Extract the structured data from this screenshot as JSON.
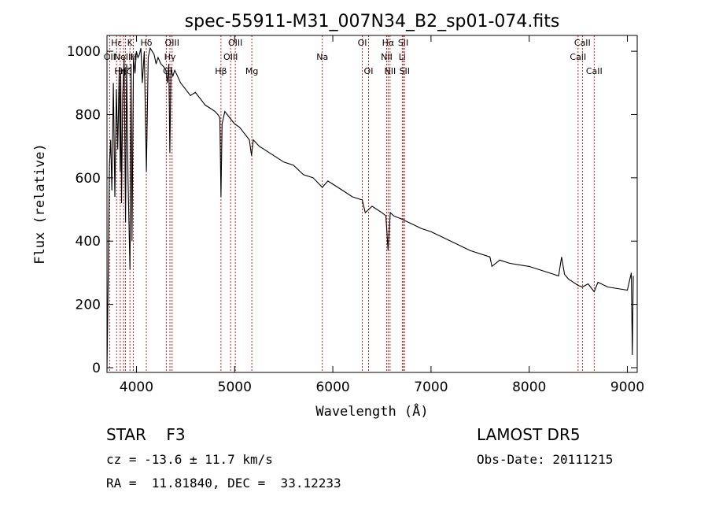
{
  "chart_data": {
    "type": "line",
    "title": "spec-55911-M31_007N34_B2_sp01-074.fits",
    "xlabel": "Wavelength (Å)",
    "ylabel": "Flux (relative)",
    "xlim": [
      3700,
      9100
    ],
    "ylim": [
      -15,
      1050
    ],
    "x_ticks": [
      4000,
      5000,
      6000,
      7000,
      8000,
      9000
    ],
    "y_ticks": [
      0,
      200,
      400,
      600,
      800,
      1000
    ],
    "grid": false,
    "series": [
      {
        "x": [
          3700,
          3712,
          3725,
          3738,
          3750,
          3765,
          3780,
          3795,
          3810,
          3825,
          3835,
          3840,
          3848,
          3860,
          3875,
          3889,
          3900,
          3915,
          3934,
          3945,
          3955,
          3970,
          3985,
          4000,
          4015,
          4030,
          4045,
          4060,
          4080,
          4101,
          4120,
          4140,
          4160,
          4180,
          4200,
          4220,
          4250,
          4280,
          4300,
          4315,
          4330,
          4340,
          4352,
          4370,
          4390,
          4420,
          4450,
          4500,
          4550,
          4600,
          4650,
          4700,
          4750,
          4800,
          4830,
          4850,
          4861,
          4872,
          4900,
          4950,
          5000,
          5050,
          5100,
          5150,
          5172,
          5190,
          5250,
          5300,
          5400,
          5500,
          5600,
          5700,
          5800,
          5893,
          5950,
          6000,
          6100,
          6200,
          6300,
          6330,
          6400,
          6500,
          6540,
          6563,
          6585,
          6620,
          6700,
          6800,
          6900,
          7000,
          7200,
          7400,
          7600,
          7620,
          7700,
          7800,
          8000,
          8200,
          8300,
          8330,
          8360,
          8400,
          8498,
          8542,
          8600,
          8662,
          8700,
          8800,
          8900,
          9000,
          9040,
          9050,
          9060
        ],
        "values": [
          -10,
          280,
          640,
          720,
          560,
          900,
          540,
          880,
          690,
          950,
          620,
          930,
          520,
          860,
          980,
          460,
          960,
          590,
          310,
          960,
          400,
          980,
          930,
          1000,
          980,
          990,
          1010,
          900,
          1000,
          620,
          980,
          1010,
          1000,
          990,
          960,
          980,
          960,
          950,
          940,
          900,
          960,
          680,
          950,
          920,
          940,
          920,
          900,
          880,
          860,
          870,
          850,
          830,
          820,
          810,
          800,
          790,
          540,
          770,
          810,
          790,
          770,
          760,
          740,
          720,
          670,
          720,
          700,
          690,
          670,
          650,
          640,
          610,
          600,
          570,
          590,
          580,
          560,
          540,
          530,
          490,
          510,
          490,
          480,
          370,
          490,
          480,
          470,
          455,
          440,
          430,
          400,
          370,
          350,
          320,
          340,
          330,
          320,
          300,
          290,
          350,
          295,
          280,
          260,
          255,
          265,
          240,
          270,
          255,
          250,
          245,
          300,
          40,
          290
        ]
      }
    ],
    "lines": [
      {
        "x": 3727,
        "label": "OII",
        "row": 1,
        "color": "#cc0000"
      },
      {
        "x": 3798,
        "label": "Hε",
        "row": 0,
        "color": "#cc0000"
      },
      {
        "x": 3835,
        "label": "Hη",
        "row": 2,
        "color": "#cc0000"
      },
      {
        "x": 3869,
        "label": "NeIII",
        "row": 1,
        "color": "#cc0000"
      },
      {
        "x": 3889,
        "label": "Hζ",
        "row": 2,
        "color": "#cc0000"
      },
      {
        "x": 3934,
        "label": "K",
        "row": 0,
        "color": "#cc0000"
      },
      {
        "x": 3969,
        "label": "H",
        "row": 1,
        "color": "#cc0000"
      },
      {
        "x": 4101,
        "label": "Hδ",
        "row": 0,
        "color": "#cc0000"
      },
      {
        "x": 4304,
        "label": "G",
        "row": 2,
        "color": "#cc0000"
      },
      {
        "x": 4341,
        "label": "Hγ",
        "row": 1,
        "color": "#cc0000"
      },
      {
        "x": 4363,
        "label": "OIII",
        "row": 0,
        "color": "#cc0000"
      },
      {
        "x": 4861,
        "label": "Hβ",
        "row": 2,
        "color": "#cc0000"
      },
      {
        "x": 4959,
        "label": "OIII",
        "row": 1,
        "color": "#cc0000"
      },
      {
        "x": 5007,
        "label": "OIII",
        "row": 0,
        "color": "#cc0000"
      },
      {
        "x": 5175,
        "label": "Mg",
        "row": 2,
        "color": "#cc0000"
      },
      {
        "x": 5893,
        "label": "Na",
        "row": 1,
        "color": "#cc0000"
      },
      {
        "x": 6300,
        "label": "OI",
        "row": 0,
        "color": "#cc0000"
      },
      {
        "x": 6364,
        "label": "OI",
        "row": 2,
        "color": "#cc0000"
      },
      {
        "x": 6548,
        "label": "NII",
        "row": 1,
        "color": "#cc0000"
      },
      {
        "x": 6563,
        "label": "Hα",
        "row": 0,
        "color": "#cc0000"
      },
      {
        "x": 6583,
        "label": "NII",
        "row": 2,
        "color": "#cc0000"
      },
      {
        "x": 6707,
        "label": "Li",
        "row": 1,
        "color": "#cc0000"
      },
      {
        "x": 6717,
        "label": "SII",
        "row": 0,
        "color": "#cc0000"
      },
      {
        "x": 6731,
        "label": "SII",
        "row": 2,
        "color": "#cc0000"
      },
      {
        "x": 8498,
        "label": "CaII",
        "row": 1,
        "color": "#cc0000"
      },
      {
        "x": 8542,
        "label": "CaII",
        "row": 0,
        "color": "#cc0000"
      },
      {
        "x": 8662,
        "label": "CaII",
        "row": 2,
        "color": "#cc0000"
      }
    ]
  },
  "footer": {
    "classification": "STAR    F3",
    "survey": "LAMOST DR5",
    "cz": "cz = -13.6 ± 11.7 km/s",
    "obs_date": "Obs-Date: 20111215",
    "radec": "RA =  11.81840, DEC =  33.12233"
  }
}
